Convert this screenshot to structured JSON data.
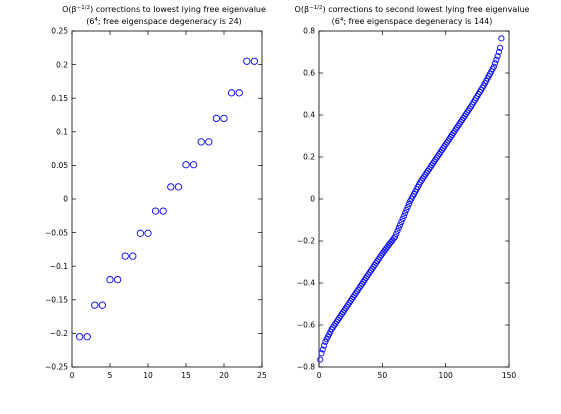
{
  "chart_data": [
    {
      "type": "scatter",
      "title_line1_pre": "O(β",
      "title_line1_sup": "−1/2",
      "title_line1_post": ") corrections to lowest lying free eigenvalue",
      "title_line2_pre": "(6",
      "title_line2_sup": "4",
      "title_line2_post": "; free eigenspace degeneracy is 24)",
      "xlabel": "",
      "ylabel": "",
      "xlim": [
        0,
        25
      ],
      "ylim": [
        -0.25,
        0.25
      ],
      "xticks": [
        0,
        5,
        10,
        15,
        20,
        25
      ],
      "xtick_labels": [
        "0",
        "5",
        "10",
        "15",
        "20",
        "25"
      ],
      "yticks": [
        -0.25,
        -0.2,
        -0.15,
        -0.1,
        -0.05,
        0,
        0.05,
        0.1,
        0.15,
        0.2,
        0.25
      ],
      "ytick_labels": [
        "−0.25",
        "−0.2",
        "−0.15",
        "−0.1",
        "−0.05",
        "0",
        "0.05",
        "0.1",
        "0.15",
        "0.2",
        "0.25"
      ],
      "grid": false,
      "marker": "open-circle",
      "marker_color": "#0000ff",
      "series": [
        {
          "x": [
            1,
            2,
            3,
            4,
            5,
            6,
            7,
            8,
            9,
            10,
            11,
            12,
            13,
            14,
            15,
            16,
            17,
            18,
            19,
            20,
            21,
            22,
            23,
            24
          ],
          "y": [
            -0.205,
            -0.205,
            -0.158,
            -0.158,
            -0.12,
            -0.12,
            -0.085,
            -0.085,
            -0.051,
            -0.051,
            -0.018,
            -0.018,
            0.018,
            0.018,
            0.051,
            0.051,
            0.085,
            0.085,
            0.12,
            0.12,
            0.158,
            0.158,
            0.205,
            0.205
          ]
        }
      ]
    },
    {
      "type": "scatter",
      "title_line1_pre": "O(β",
      "title_line1_sup": "−1/2",
      "title_line1_post": ") corrections to second lowest lying free eigenvalue",
      "title_line2_pre": "(6",
      "title_line2_sup": "4",
      "title_line2_post": "; free eigenspace degeneracy is 144)",
      "xlabel": "",
      "ylabel": "",
      "xlim": [
        0,
        150
      ],
      "ylim": [
        -0.8,
        0.8
      ],
      "xticks": [
        0,
        50,
        100,
        150
      ],
      "xtick_labels": [
        "0",
        "50",
        "100",
        "150"
      ],
      "yticks": [
        -0.8,
        -0.6,
        -0.4,
        -0.2,
        0,
        0.2,
        0.4,
        0.6,
        0.8
      ],
      "ytick_labels": [
        "−0.8",
        "−0.6",
        "−0.4",
        "−0.2",
        "0",
        "0.2",
        "0.4",
        "0.6",
        "0.8"
      ],
      "grid": false,
      "marker": "open-circle",
      "marker_color": "#0000ff",
      "curve_description": "144 monotonically increasing points, x = 1..144, y rising in an S-shaped (tangent-like) curve",
      "series": [
        {
          "x_start": 1,
          "x_end": 144,
          "y_at_x": [
            [
              1,
              -0.765
            ],
            [
              2,
              -0.735
            ],
            [
              5,
              -0.68
            ],
            [
              10,
              -0.62
            ],
            [
              20,
              -0.53
            ],
            [
              30,
              -0.44
            ],
            [
              40,
              -0.35
            ],
            [
              50,
              -0.26
            ],
            [
              60,
              -0.18
            ],
            [
              72,
              -0.01
            ],
            [
              80,
              0.08
            ],
            [
              90,
              0.17
            ],
            [
              100,
              0.26
            ],
            [
              110,
              0.35
            ],
            [
              120,
              0.44
            ],
            [
              130,
              0.54
            ],
            [
              138,
              0.63
            ],
            [
              141,
              0.68
            ],
            [
              143,
              0.72
            ],
            [
              144,
              0.765
            ]
          ]
        }
      ]
    }
  ]
}
